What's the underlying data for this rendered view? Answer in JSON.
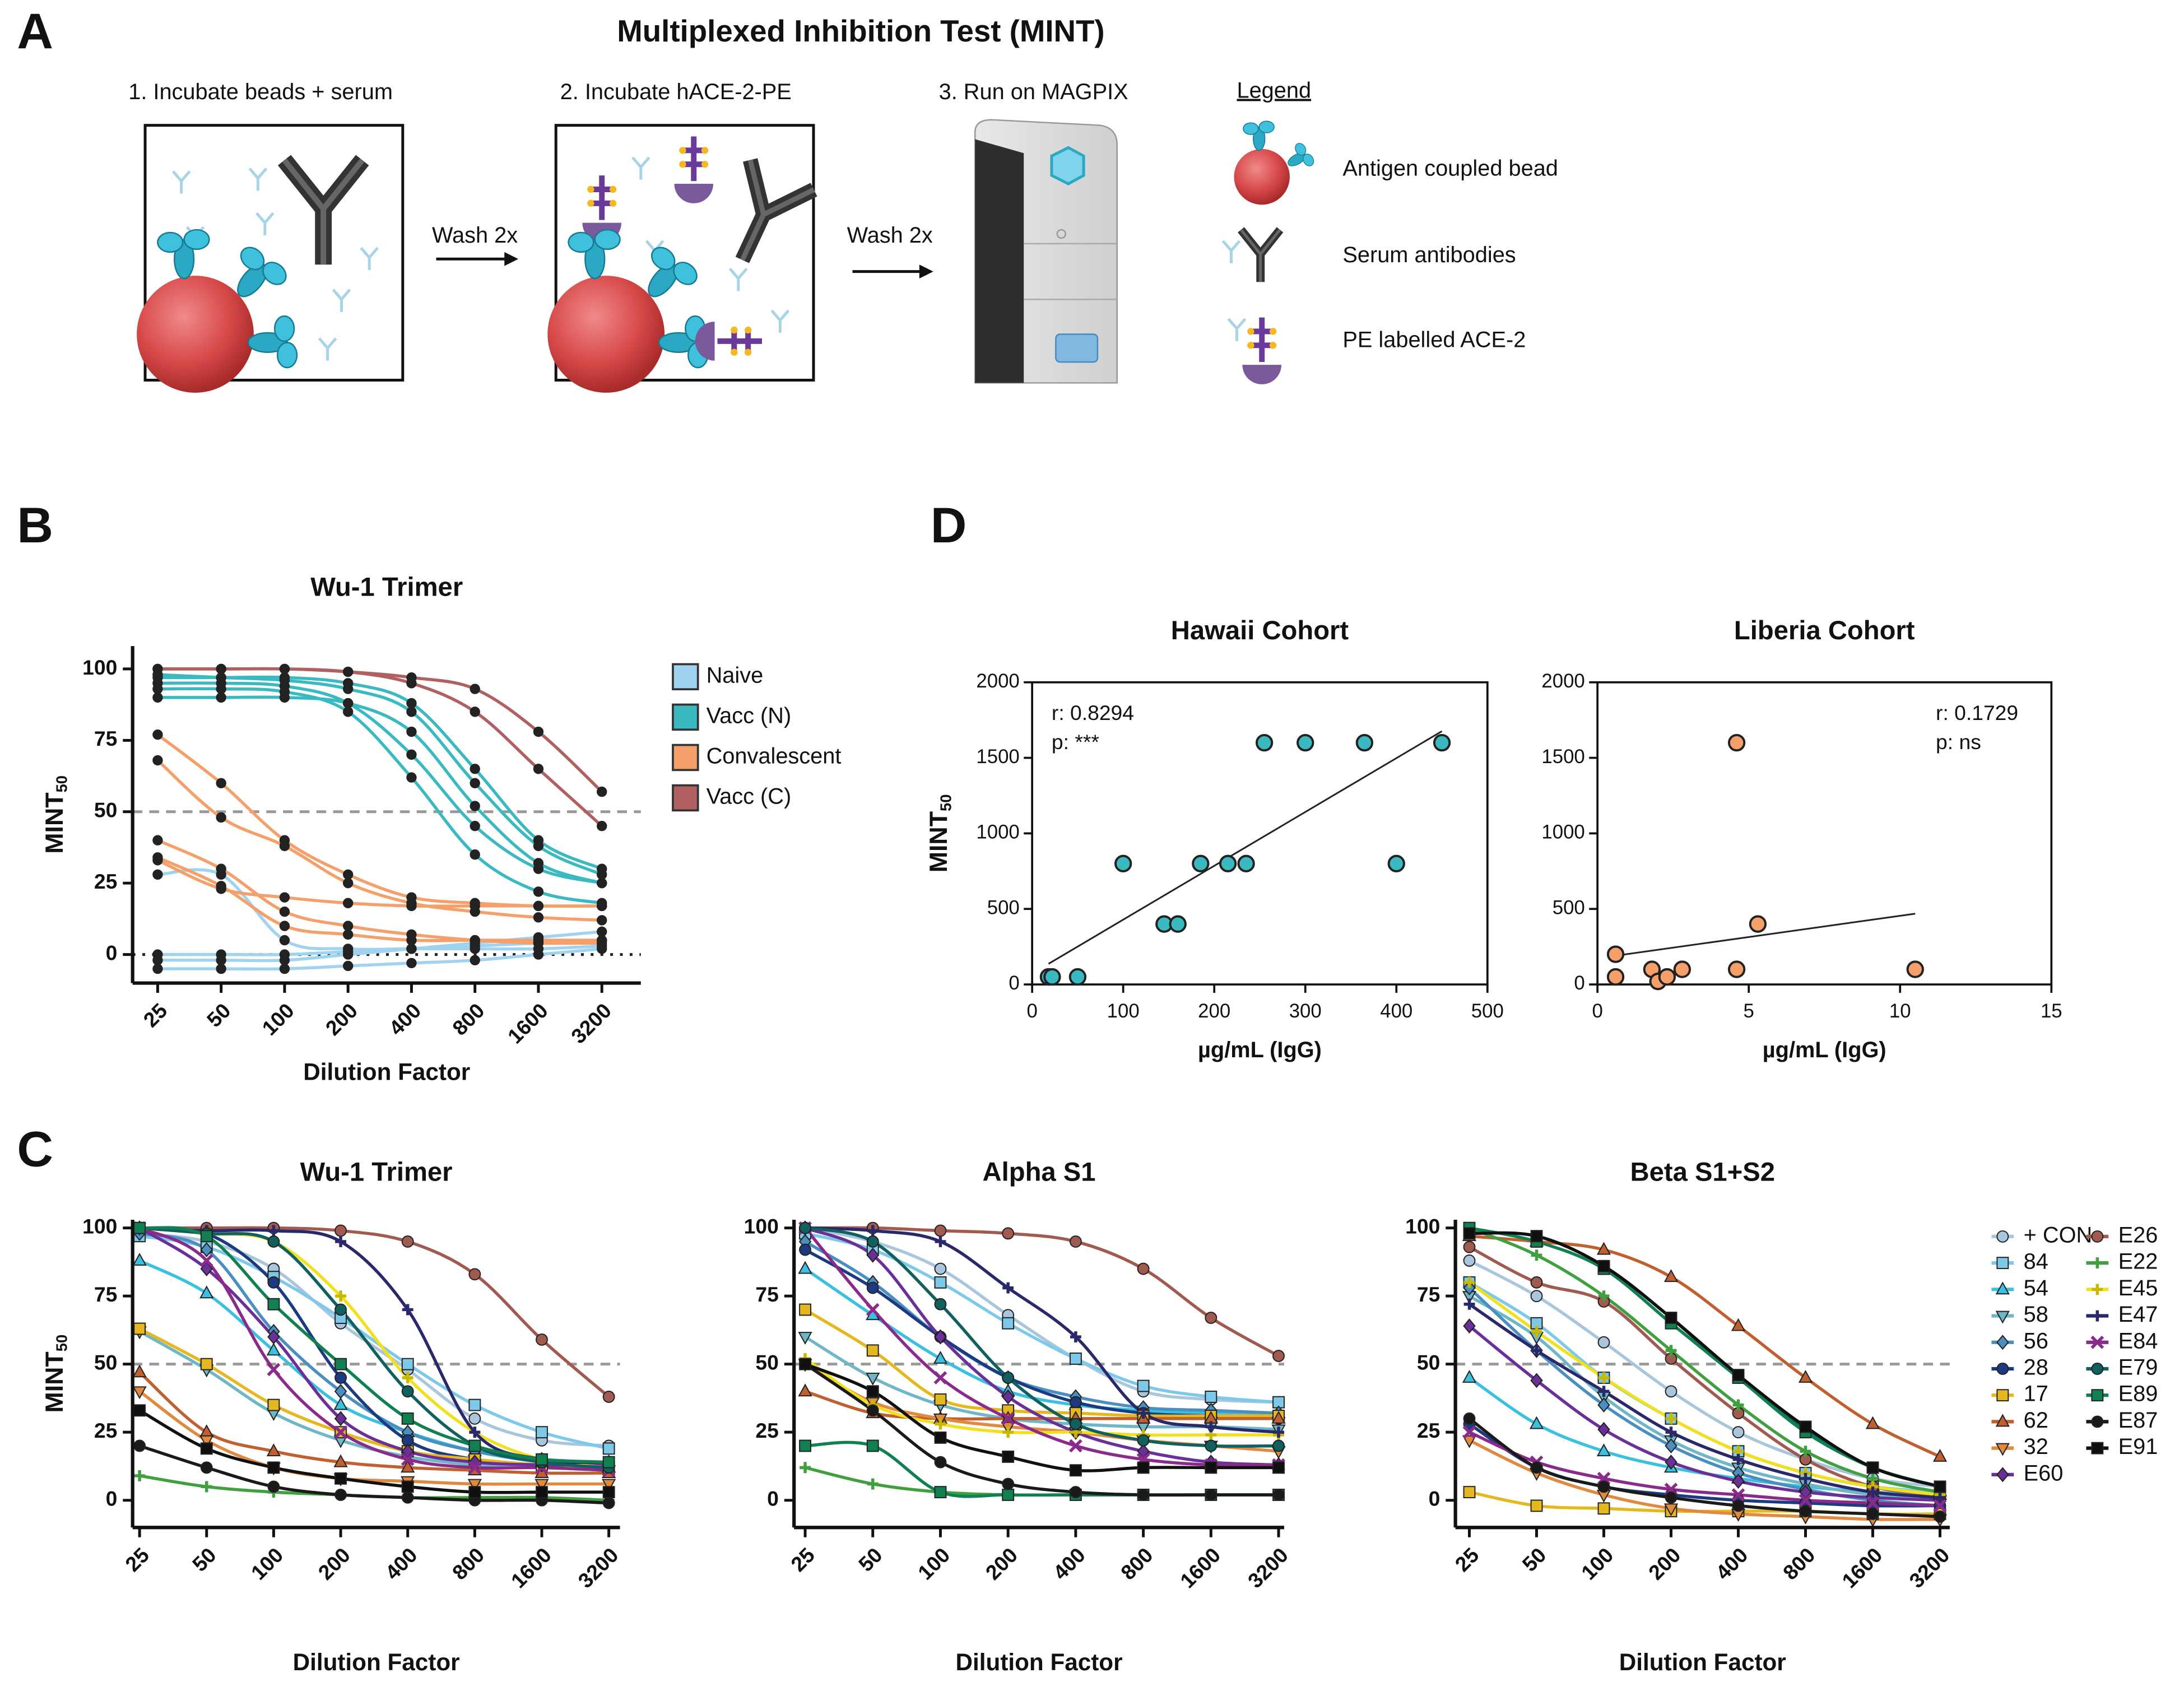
{
  "panel_labels": [
    "A",
    "B",
    "C",
    "D"
  ],
  "diagram": {
    "title": "Multiplexed Inhibition Test (MINT)",
    "steps": [
      "1.  Incubate beads + serum",
      "2.  Incubate hACE-2-PE",
      "3. Run on MAGPIX"
    ],
    "wash": [
      "Wash 2x",
      "Wash 2x"
    ],
    "legend_title": "Legend",
    "legend_items": [
      "Antigen coupled bead",
      "Serum antibodies",
      "PE labelled ACE-2"
    ]
  },
  "chart_data": [
    {
      "type": "line",
      "title": "Wu-1 Trimer",
      "xlabel": "Dilution Factor",
      "ylabel": {
        "text": "MINT",
        "sub": "50"
      },
      "categories": [
        "25",
        "50",
        "100",
        "200",
        "400",
        "800",
        "1600",
        "3200"
      ],
      "ylim": [
        -10,
        108
      ],
      "yticks": [
        0,
        25,
        50,
        75,
        100
      ],
      "hlines": [
        {
          "value": 50,
          "style": "dashed"
        },
        {
          "value": 0,
          "style": "dotted"
        }
      ],
      "series": [
        {
          "name": "Naive",
          "color": "#9fd3ef",
          "values": [
            [
              0,
              0,
              0,
              1,
              2,
              3,
              4,
              5
            ],
            [
              -5,
              -5,
              -5,
              -4,
              -3,
              -2,
              0,
              2
            ],
            [
              28,
              28,
              5,
              2,
              2,
              2,
              2,
              3
            ],
            [
              -2,
              -2,
              -2,
              0,
              2,
              4,
              6,
              8
            ]
          ]
        },
        {
          "name": "Vacc (N)",
          "color": "#3ab9c0",
          "values": [
            [
              95,
              95,
              94,
              88,
              70,
              45,
              30,
              25
            ],
            [
              98,
              97,
              96,
              93,
              85,
              60,
              38,
              28
            ],
            [
              90,
              90,
              90,
              88,
              78,
              52,
              32,
              25
            ],
            [
              97,
              97,
              97,
              95,
              88,
              65,
              40,
              30
            ],
            [
              93,
              93,
              92,
              85,
              62,
              35,
              22,
              18
            ]
          ]
        },
        {
          "name": "Convalescent",
          "color": "#f5a06a",
          "values": [
            [
              77,
              60,
              40,
              28,
              20,
              18,
              17,
              17
            ],
            [
              68,
              48,
              38,
              25,
              18,
              15,
              13,
              12
            ],
            [
              40,
              30,
              15,
              10,
              7,
              5,
              4,
              4
            ],
            [
              34,
              24,
              10,
              7,
              5,
              5,
              5,
              5
            ],
            [
              33,
              23,
              20,
              18,
              17,
              17,
              17,
              17
            ]
          ]
        },
        {
          "name": "Vacc (C)",
          "color": "#b06060",
          "values": [
            [
              100,
              100,
              100,
              99,
              97,
              93,
              78,
              57
            ],
            [
              100,
              100,
              100,
              99,
              95,
              85,
              65,
              45
            ]
          ]
        }
      ]
    },
    {
      "type": "line",
      "title": "Wu-1 Trimer",
      "xlabel": "Dilution Factor",
      "ylabel": {
        "text": "MINT",
        "sub": "50"
      },
      "categories": [
        "25",
        "50",
        "100",
        "200",
        "400",
        "800",
        "1600",
        "3200"
      ],
      "ylim": [
        -10,
        103
      ],
      "yticks": [
        0,
        25,
        50,
        75,
        100
      ],
      "hlines": [
        {
          "value": 50,
          "style": "dashed"
        }
      ],
      "series_values": [
        [
          98,
          95,
          85,
          65,
          48,
          30,
          22,
          20
        ],
        [
          97,
          93,
          82,
          67,
          50,
          35,
          25,
          19
        ],
        [
          88,
          76,
          55,
          35,
          25,
          18,
          14,
          12
        ],
        [
          62,
          48,
          32,
          22,
          16,
          13,
          12,
          11
        ],
        [
          98,
          92,
          62,
          40,
          25,
          18,
          15,
          14
        ],
        [
          100,
          98,
          80,
          45,
          22,
          15,
          13,
          12
        ],
        [
          63,
          50,
          35,
          25,
          18,
          15,
          13,
          12
        ],
        [
          47,
          25,
          18,
          14,
          12,
          11,
          10,
          10
        ],
        [
          40,
          22,
          12,
          8,
          7,
          6,
          6,
          6
        ],
        [
          100,
          85,
          60,
          30,
          18,
          14,
          13,
          13
        ],
        [
          100,
          100,
          100,
          99,
          95,
          83,
          59,
          38
        ],
        [
          9,
          5,
          3,
          2,
          1,
          1,
          1,
          0
        ],
        [
          100,
          98,
          95,
          75,
          45,
          25,
          15,
          12
        ],
        [
          100,
          99,
          99,
          95,
          70,
          25,
          15,
          14
        ],
        [
          100,
          88,
          48,
          25,
          15,
          12,
          12,
          11
        ],
        [
          100,
          98,
          95,
          70,
          40,
          20,
          14,
          12
        ],
        [
          100,
          97,
          72,
          50,
          30,
          20,
          15,
          14
        ],
        [
          20,
          12,
          5,
          2,
          1,
          0,
          0,
          -1
        ],
        [
          33,
          19,
          12,
          8,
          5,
          3,
          3,
          3
        ]
      ]
    },
    {
      "type": "line",
      "title": "Alpha S1",
      "xlabel": "Dilution Factor",
      "categories": [
        "25",
        "50",
        "100",
        "200",
        "400",
        "800",
        "1600",
        "3200"
      ],
      "ylim": [
        -10,
        103
      ],
      "yticks": [
        0,
        25,
        50,
        75,
        100
      ],
      "hlines": [
        {
          "value": 50,
          "style": "dashed"
        }
      ],
      "series_values": [
        [
          100,
          95,
          85,
          68,
          52,
          40,
          37,
          36
        ],
        [
          98,
          92,
          80,
          65,
          52,
          42,
          38,
          36
        ],
        [
          85,
          68,
          52,
          40,
          35,
          33,
          32,
          32
        ],
        [
          60,
          45,
          35,
          30,
          28,
          27,
          27,
          26
        ],
        [
          95,
          80,
          60,
          45,
          38,
          34,
          33,
          32
        ],
        [
          92,
          78,
          60,
          45,
          36,
          32,
          31,
          30
        ],
        [
          70,
          55,
          37,
          33,
          32,
          31,
          31,
          31
        ],
        [
          40,
          32,
          30,
          30,
          30,
          30,
          30,
          30
        ],
        [
          50,
          36,
          30,
          27,
          25,
          22,
          20,
          18
        ],
        [
          100,
          90,
          60,
          38,
          25,
          18,
          14,
          13
        ],
        [
          100,
          100,
          99,
          98,
          95,
          85,
          67,
          53
        ],
        [
          12,
          6,
          3,
          2,
          2,
          2,
          2,
          2
        ],
        [
          52,
          35,
          28,
          25,
          25,
          24,
          24,
          24
        ],
        [
          100,
          99,
          95,
          78,
          60,
          32,
          27,
          25
        ],
        [
          100,
          70,
          45,
          30,
          20,
          15,
          13,
          13
        ],
        [
          100,
          95,
          72,
          45,
          28,
          22,
          20,
          20
        ],
        [
          20,
          20,
          3,
          2,
          2,
          2,
          2,
          2
        ],
        [
          50,
          33,
          14,
          6,
          3,
          2,
          2,
          2
        ],
        [
          50,
          40,
          23,
          16,
          11,
          12,
          12,
          12
        ]
      ]
    },
    {
      "type": "line",
      "title": "Beta S1+S2",
      "xlabel": "Dilution Factor",
      "categories": [
        "25",
        "50",
        "100",
        "200",
        "400",
        "800",
        "1600",
        "3200"
      ],
      "ylim": [
        -10,
        103
      ],
      "yticks": [
        0,
        25,
        50,
        75,
        100
      ],
      "hlines": [
        {
          "value": 50,
          "style": "dashed"
        }
      ],
      "series_values": [
        [
          88,
          75,
          58,
          40,
          25,
          15,
          8,
          5
        ],
        [
          80,
          65,
          45,
          30,
          18,
          10,
          5,
          3
        ],
        [
          45,
          28,
          18,
          12,
          8,
          5,
          3,
          2
        ],
        [
          75,
          60,
          38,
          22,
          12,
          6,
          2,
          0
        ],
        [
          78,
          55,
          35,
          20,
          10,
          4,
          0,
          -2
        ],
        [
          28,
          12,
          5,
          2,
          0,
          -1,
          -2,
          -2
        ],
        [
          3,
          -2,
          -3,
          -4,
          -4,
          -4,
          -5,
          -5
        ],
        [
          97,
          95,
          92,
          82,
          64,
          45,
          28,
          16
        ],
        [
          22,
          10,
          2,
          -3,
          -5,
          -6,
          -7,
          -7
        ],
        [
          64,
          44,
          26,
          14,
          7,
          3,
          1,
          0
        ],
        [
          93,
          80,
          73,
          52,
          32,
          15,
          5,
          2
        ],
        [
          100,
          90,
          75,
          55,
          35,
          18,
          8,
          3
        ],
        [
          80,
          62,
          45,
          30,
          18,
          10,
          5,
          2
        ],
        [
          72,
          55,
          40,
          25,
          15,
          8,
          3,
          1
        ],
        [
          25,
          14,
          8,
          4,
          2,
          0,
          -1,
          -2
        ],
        [
          98,
          97,
          86,
          67,
          45,
          26,
          12,
          5
        ],
        [
          100,
          95,
          85,
          65,
          45,
          25,
          12,
          5
        ],
        [
          30,
          12,
          5,
          1,
          -2,
          -4,
          -5,
          -6
        ],
        [
          98,
          97,
          86,
          67,
          46,
          27,
          12,
          5
        ]
      ]
    },
    {
      "type": "scatter",
      "title": "Hawaii Cohort",
      "xlabel": "µg/mL (IgG)",
      "ylabel": {
        "text": "MINT",
        "sub": "50"
      },
      "color": "#3ab9c0",
      "x": [
        18,
        22,
        50,
        100,
        145,
        160,
        185,
        215,
        235,
        255,
        300,
        365,
        400,
        450
      ],
      "values": [
        50,
        50,
        50,
        800,
        400,
        400,
        800,
        800,
        800,
        1600,
        1600,
        1600,
        800,
        1600
      ],
      "xlim": [
        0,
        500
      ],
      "xticks": [
        0,
        100,
        200,
        300,
        400,
        500
      ],
      "ylim": [
        0,
        2000
      ],
      "yticks": [
        0,
        500,
        1000,
        1500,
        2000
      ],
      "annotations": [
        "r: 0.8294",
        "p: ***"
      ],
      "annotation_corner": "upper left"
    },
    {
      "type": "scatter",
      "title": "Liberia Cohort",
      "xlabel": "µg/mL (IgG)",
      "color": "#f5a06a",
      "x": [
        0.6,
        0.6,
        1.8,
        2.0,
        2.3,
        2.8,
        4.6,
        4.6,
        5.3,
        10.5
      ],
      "values": [
        200,
        50,
        100,
        20,
        50,
        100,
        1600,
        100,
        400,
        100
      ],
      "xlim": [
        0,
        15
      ],
      "xticks": [
        0,
        5,
        10,
        15
      ],
      "ylim": [
        0,
        2000
      ],
      "yticks": [
        0,
        500,
        1000,
        1500,
        2000
      ],
      "annotations": [
        "r: 0.1729",
        "p: ns"
      ],
      "annotation_corner": "upper right"
    }
  ],
  "legend_c": [
    {
      "name": "+ CON",
      "color": "#a9c6dc",
      "marker": "circle"
    },
    {
      "name": "84",
      "color": "#7ec8ea",
      "marker": "square"
    },
    {
      "name": "54",
      "color": "#3cc0e0",
      "marker": "triangle"
    },
    {
      "name": "58",
      "color": "#6fb6c6",
      "marker": "tri-down"
    },
    {
      "name": "56",
      "color": "#4a8fc0",
      "marker": "diamond"
    },
    {
      "name": "28",
      "color": "#1c3a80",
      "marker": "circle"
    },
    {
      "name": "17",
      "color": "#e6b820",
      "marker": "square"
    },
    {
      "name": "62",
      "color": "#c06030",
      "marker": "triangle"
    },
    {
      "name": "32",
      "color": "#e08a40",
      "marker": "tri-down"
    },
    {
      "name": "E60",
      "color": "#6a3098",
      "marker": "diamond"
    },
    {
      "name": "E26",
      "color": "#a05a50",
      "marker": "circle"
    },
    {
      "name": "E22",
      "color": "#40a040",
      "marker": "plus"
    },
    {
      "name": "E45",
      "color": "#f0e020",
      "marker": "plus"
    },
    {
      "name": "E47",
      "color": "#28286a",
      "marker": "plus"
    },
    {
      "name": "E84",
      "color": "#8a2a8a",
      "marker": "x"
    },
    {
      "name": "E79",
      "color": "#106060",
      "marker": "circle"
    },
    {
      "name": "E89",
      "color": "#108050",
      "marker": "square"
    },
    {
      "name": "E87",
      "color": "#1a1a1a",
      "marker": "circle"
    },
    {
      "name": "E91",
      "color": "#101010",
      "marker": "square"
    }
  ]
}
